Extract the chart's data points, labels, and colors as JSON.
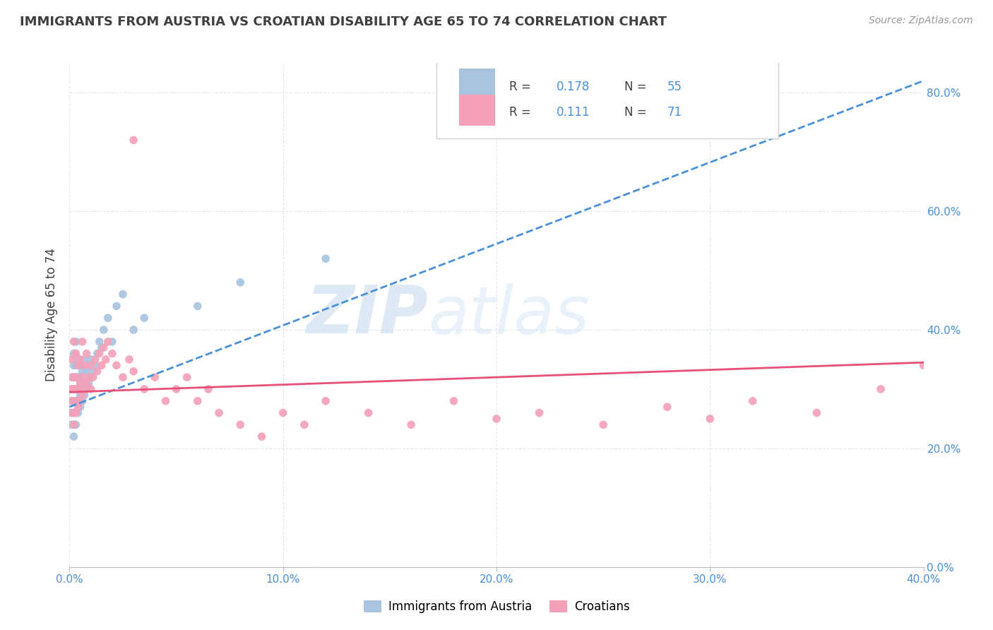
{
  "title": "IMMIGRANTS FROM AUSTRIA VS CROATIAN DISABILITY AGE 65 TO 74 CORRELATION CHART",
  "source": "Source: ZipAtlas.com",
  "ylabel": "Disability Age 65 to 74",
  "legend_labels": [
    "Immigrants from Austria",
    "Croatians"
  ],
  "austria_R": 0.178,
  "austria_N": 55,
  "croatia_R": 0.111,
  "croatia_N": 71,
  "austria_color": "#a8c4e0",
  "croatia_color": "#f4a0b8",
  "austria_line_color": "#4a90d9",
  "croatia_line_color": "#e8507a",
  "watermark_zip": "ZIP",
  "watermark_atlas": "atlas",
  "austria_x": [
    0.001,
    0.001,
    0.001,
    0.001,
    0.002,
    0.002,
    0.002,
    0.002,
    0.002,
    0.002,
    0.002,
    0.002,
    0.003,
    0.003,
    0.003,
    0.003,
    0.003,
    0.003,
    0.003,
    0.004,
    0.004,
    0.004,
    0.004,
    0.004,
    0.005,
    0.005,
    0.005,
    0.005,
    0.006,
    0.006,
    0.006,
    0.007,
    0.007,
    0.007,
    0.008,
    0.008,
    0.009,
    0.009,
    0.01,
    0.01,
    0.011,
    0.012,
    0.013,
    0.014,
    0.015,
    0.016,
    0.018,
    0.02,
    0.022,
    0.025,
    0.03,
    0.035,
    0.06,
    0.08,
    0.12
  ],
  "austria_y": [
    0.24,
    0.26,
    0.28,
    0.3,
    0.22,
    0.24,
    0.26,
    0.28,
    0.3,
    0.32,
    0.34,
    0.36,
    0.24,
    0.26,
    0.28,
    0.3,
    0.32,
    0.34,
    0.38,
    0.26,
    0.28,
    0.3,
    0.32,
    0.35,
    0.27,
    0.29,
    0.31,
    0.34,
    0.28,
    0.3,
    0.33,
    0.29,
    0.31,
    0.35,
    0.3,
    0.33,
    0.31,
    0.34,
    0.32,
    0.35,
    0.33,
    0.34,
    0.36,
    0.38,
    0.37,
    0.4,
    0.42,
    0.38,
    0.44,
    0.46,
    0.4,
    0.42,
    0.44,
    0.48,
    0.52
  ],
  "croatia_x": [
    0.001,
    0.001,
    0.001,
    0.001,
    0.001,
    0.002,
    0.002,
    0.002,
    0.002,
    0.002,
    0.002,
    0.003,
    0.003,
    0.003,
    0.003,
    0.003,
    0.004,
    0.004,
    0.004,
    0.005,
    0.005,
    0.005,
    0.006,
    0.006,
    0.006,
    0.007,
    0.007,
    0.008,
    0.008,
    0.009,
    0.01,
    0.01,
    0.011,
    0.012,
    0.013,
    0.014,
    0.015,
    0.016,
    0.017,
    0.018,
    0.02,
    0.022,
    0.025,
    0.028,
    0.03,
    0.035,
    0.04,
    0.045,
    0.05,
    0.055,
    0.06,
    0.065,
    0.07,
    0.08,
    0.09,
    0.1,
    0.11,
    0.12,
    0.14,
    0.16,
    0.18,
    0.2,
    0.22,
    0.25,
    0.28,
    0.3,
    0.32,
    0.35,
    0.38,
    0.4,
    0.03
  ],
  "croatia_y": [
    0.26,
    0.28,
    0.3,
    0.32,
    0.35,
    0.24,
    0.26,
    0.28,
    0.3,
    0.32,
    0.38,
    0.26,
    0.28,
    0.3,
    0.32,
    0.36,
    0.27,
    0.3,
    0.34,
    0.28,
    0.31,
    0.35,
    0.29,
    0.32,
    0.38,
    0.3,
    0.34,
    0.31,
    0.36,
    0.32,
    0.3,
    0.34,
    0.32,
    0.35,
    0.33,
    0.36,
    0.34,
    0.37,
    0.35,
    0.38,
    0.36,
    0.34,
    0.32,
    0.35,
    0.33,
    0.3,
    0.32,
    0.28,
    0.3,
    0.32,
    0.28,
    0.3,
    0.26,
    0.24,
    0.22,
    0.26,
    0.24,
    0.28,
    0.26,
    0.24,
    0.28,
    0.25,
    0.26,
    0.24,
    0.27,
    0.25,
    0.28,
    0.26,
    0.3,
    0.34,
    0.72
  ],
  "xlim": [
    0.0,
    0.4
  ],
  "ylim": [
    0.0,
    0.85
  ],
  "xticks": [
    0.0,
    0.1,
    0.2,
    0.3,
    0.4
  ],
  "yticks": [
    0.0,
    0.2,
    0.4,
    0.6,
    0.8
  ],
  "grid_color": "#d8e4f0",
  "title_fontsize": 13,
  "tick_fontsize": 11,
  "axis_label_color": "#4a90d9",
  "text_color": "#404040"
}
